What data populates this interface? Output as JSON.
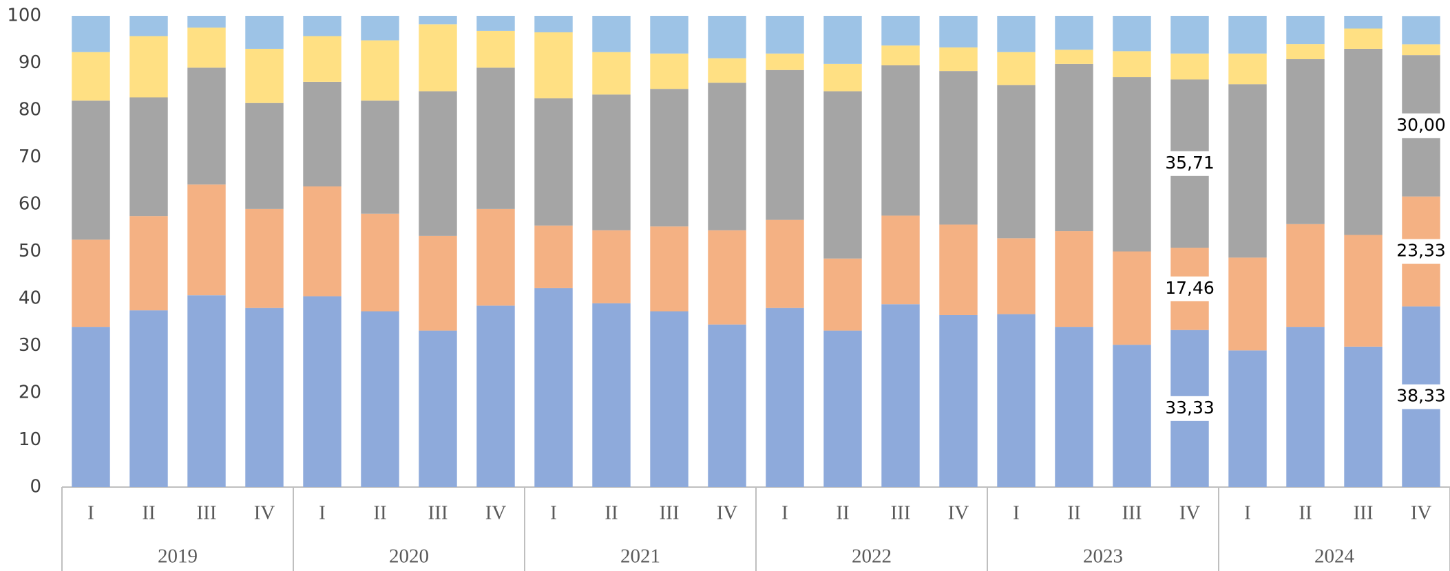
{
  "chart_data": {
    "type": "stacked-bar",
    "categories": [
      "I",
      "II",
      "III",
      "IV",
      "I",
      "II",
      "III",
      "IV",
      "I",
      "II",
      "III",
      "IV",
      "I",
      "II",
      "III",
      "IV",
      "I",
      "II",
      "III",
      "IV",
      "I",
      "II",
      "III",
      "IV"
    ],
    "groups": [
      "2019",
      "2020",
      "2021",
      "2022",
      "2023",
      "2024"
    ],
    "ylim": [
      0,
      100
    ],
    "yticks": [
      0,
      10,
      20,
      30,
      40,
      50,
      60,
      70,
      80,
      90,
      100
    ],
    "grid": false,
    "series": [
      {
        "color": "#8eaadb",
        "values": [
          34,
          37.5,
          40.7,
          38,
          40.5,
          37.3,
          33.2,
          38.5,
          42.2,
          39,
          37.3,
          34.5,
          38,
          33.2,
          38.8,
          36.5,
          36.7,
          34,
          30.2,
          33.33,
          29,
          34,
          29.8,
          38.33
        ],
        "value_labels": [
          null,
          null,
          null,
          null,
          null,
          null,
          null,
          null,
          null,
          null,
          null,
          null,
          null,
          null,
          null,
          null,
          null,
          null,
          null,
          "33,33",
          null,
          null,
          null,
          "38,33"
        ]
      },
      {
        "color": "#f4b183",
        "values": [
          18.5,
          20,
          23.5,
          21,
          23.3,
          20.7,
          20.1,
          20.5,
          13.3,
          15.5,
          18,
          20,
          18.7,
          15.3,
          18.8,
          19.2,
          16.1,
          20.3,
          19.8,
          17.46,
          19.7,
          21.8,
          23.7,
          23.33
        ],
        "value_labels": [
          null,
          null,
          null,
          null,
          null,
          null,
          null,
          null,
          null,
          null,
          null,
          null,
          null,
          null,
          null,
          null,
          null,
          null,
          null,
          "17,46",
          null,
          null,
          null,
          "23,33"
        ]
      },
      {
        "color": "#a5a5a5",
        "values": [
          29.5,
          25.2,
          24.8,
          22.5,
          22.2,
          24,
          30.7,
          30,
          27,
          28.8,
          29.2,
          31.3,
          31.8,
          35.5,
          31.9,
          32.6,
          32.5,
          35.5,
          37,
          35.71,
          36.8,
          35,
          39.5,
          30
        ],
        "value_labels": [
          null,
          null,
          null,
          null,
          null,
          null,
          null,
          null,
          null,
          null,
          null,
          null,
          null,
          null,
          null,
          null,
          null,
          null,
          null,
          "35,71",
          null,
          null,
          null,
          "30,00"
        ]
      },
      {
        "color": "#ffe083",
        "values": [
          10.3,
          13,
          8.5,
          11.5,
          9.7,
          12.8,
          14.2,
          7.8,
          14,
          9,
          7.5,
          5.2,
          3.5,
          5.8,
          4.2,
          5,
          7,
          3,
          5.5,
          5.5,
          6.5,
          3.2,
          4.3,
          2.3
        ]
      },
      {
        "color": "#9dc3e6",
        "values": [
          7.7,
          4.3,
          2.5,
          7,
          4.3,
          5.2,
          1.8,
          3.2,
          3.5,
          7.7,
          8,
          9,
          8,
          10.2,
          6.3,
          6.7,
          7.7,
          7.2,
          7.5,
          8,
          8,
          6,
          2.7,
          6
        ]
      }
    ]
  }
}
